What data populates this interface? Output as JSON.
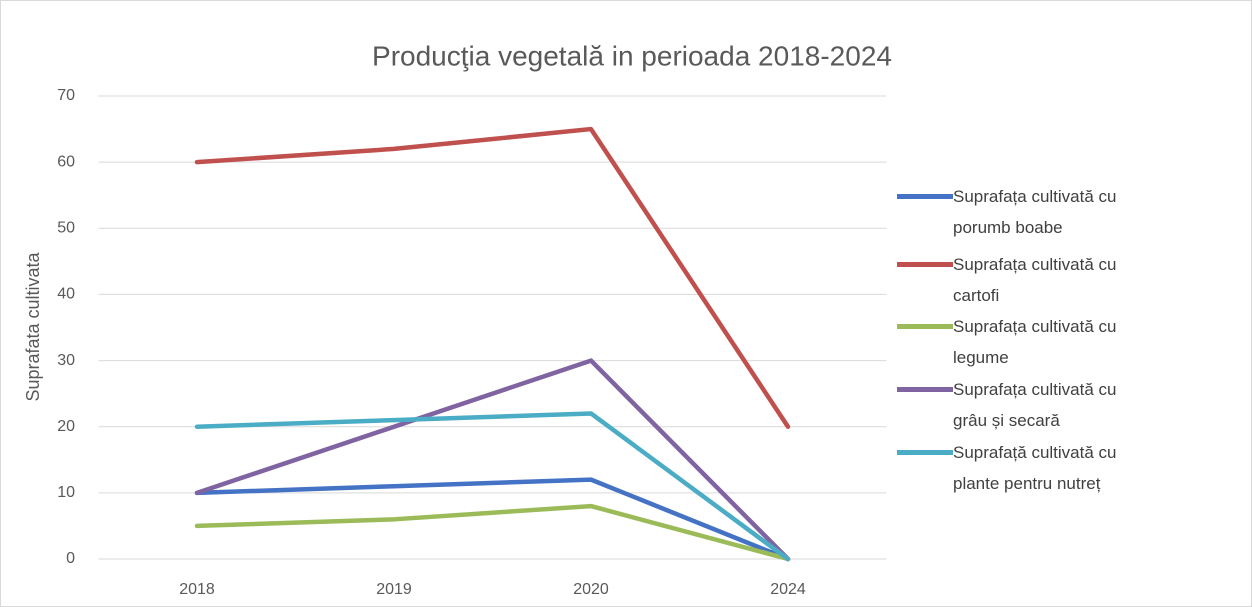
{
  "chart_data": {
    "type": "line",
    "title": "Producţia vegetală in perioada 2018-2024",
    "y_label": "Suprafata cultivata",
    "categories": [
      "2018",
      "2019",
      "2020",
      "2024"
    ],
    "series": [
      {
        "name": "Suprafața cultivată cu porumb boabe",
        "color": "#4472c4",
        "values": [
          10,
          11,
          12,
          0
        ]
      },
      {
        "name": "Suprafața cultivată cu cartofi",
        "color": "#c0504d",
        "values": [
          60,
          62,
          65,
          20
        ]
      },
      {
        "name": "Suprafața cultivată cu legume",
        "color": "#9bbb59",
        "values": [
          5,
          6,
          8,
          0
        ]
      },
      {
        "name": "Suprafața cultivată cu grâu și secară",
        "color": "#8064a2",
        "values": [
          10,
          20,
          30,
          0
        ]
      },
      {
        "name": "Suprafață cultivată cu plante pentru nutreț",
        "color": "#4bacc6",
        "values": [
          20,
          21,
          22,
          0
        ]
      }
    ],
    "ylim": [
      0,
      70
    ],
    "yticks": [
      0,
      10,
      20,
      30,
      40,
      50,
      60,
      70
    ],
    "grid": true,
    "legend": "right"
  }
}
